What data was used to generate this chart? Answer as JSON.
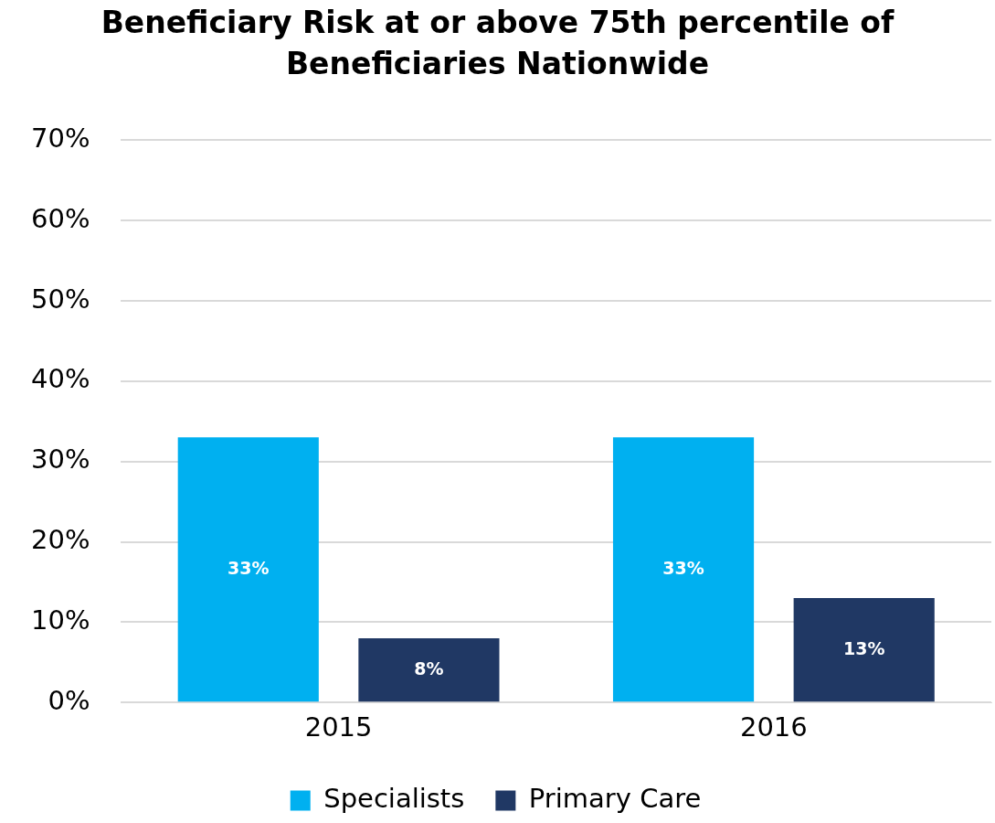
{
  "chart_data": {
    "type": "bar",
    "title": "Beneficiary Risk at or above 75th percentile of Beneficiaries Nationwide",
    "categories": [
      "2015",
      "2016"
    ],
    "series": [
      {
        "name": "Specialists",
        "color": "#00b0f0",
        "values": [
          33,
          33
        ],
        "value_labels": [
          "33%",
          "33%"
        ]
      },
      {
        "name": "Primary Care",
        "color": "#203864",
        "values": [
          8,
          13
        ],
        "value_labels": [
          "8%",
          "13%"
        ]
      }
    ],
    "ylim": [
      0,
      70
    ],
    "yticks": [
      {
        "value": 0,
        "label": "0%"
      },
      {
        "value": 10,
        "label": "10%"
      },
      {
        "value": 20,
        "label": "20%"
      },
      {
        "value": 30,
        "label": "30%"
      },
      {
        "value": 40,
        "label": "40%"
      },
      {
        "value": 50,
        "label": "50%"
      },
      {
        "value": 60,
        "label": "60%"
      },
      {
        "value": 70,
        "label": "70%"
      }
    ],
    "grid": "y",
    "legend": "bottom"
  }
}
